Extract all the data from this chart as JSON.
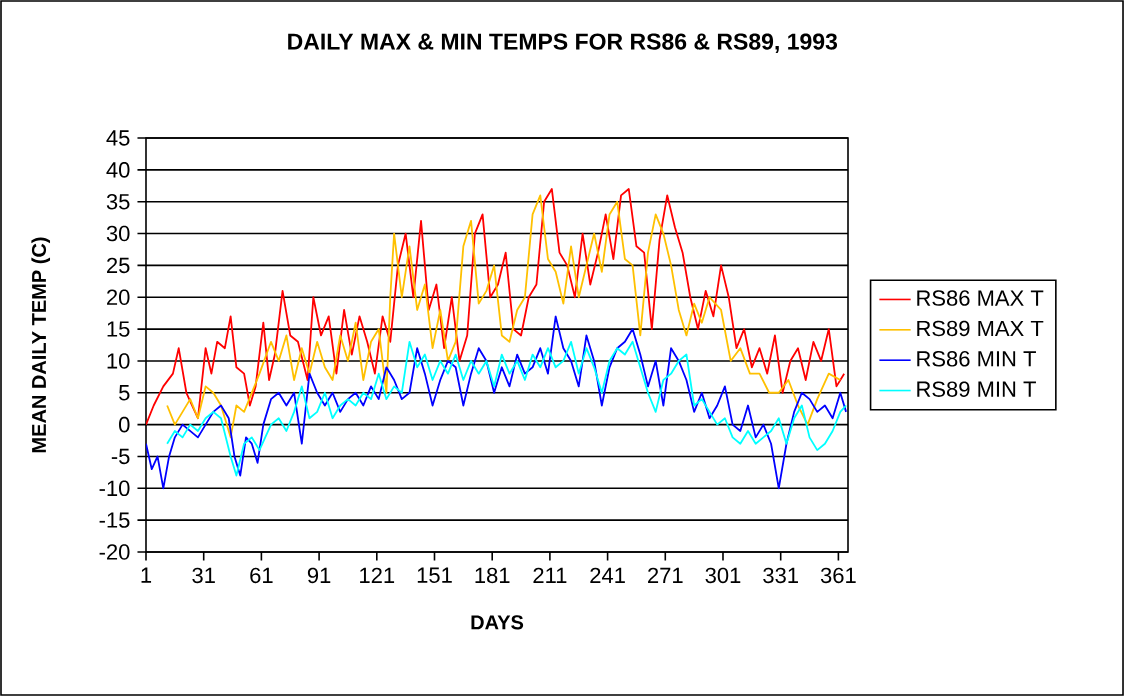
{
  "chart_data": {
    "type": "line",
    "title": "DAILY MAX & MIN TEMPS FOR RS86 & RS89, 1993",
    "xlabel": "DAYS",
    "ylabel": "MEAN DAILY TEMP (C)",
    "xlim": [
      1,
      366
    ],
    "xticks": [
      1,
      31,
      61,
      91,
      121,
      151,
      181,
      211,
      241,
      271,
      301,
      331,
      361
    ],
    "ylim": [
      -20,
      45
    ],
    "yticks": [
      -20,
      -15,
      -10,
      -5,
      0,
      5,
      10,
      15,
      20,
      25,
      30,
      35,
      40,
      45
    ],
    "grid": "y",
    "legend": "right",
    "series": [
      {
        "name": "RS86 MAX T",
        "color": "#ff0000",
        "x": [
          1,
          5,
          10,
          15,
          18,
          22,
          25,
          28,
          32,
          35,
          38,
          42,
          45,
          48,
          52,
          55,
          58,
          62,
          65,
          68,
          72,
          76,
          80,
          85,
          88,
          92,
          96,
          100,
          104,
          108,
          112,
          116,
          120,
          124,
          128,
          132,
          136,
          140,
          144,
          148,
          152,
          156,
          160,
          164,
          168,
          172,
          176,
          180,
          184,
          188,
          192,
          196,
          200,
          204,
          208,
          212,
          216,
          220,
          224,
          228,
          232,
          236,
          240,
          244,
          248,
          252,
          256,
          260,
          264,
          268,
          272,
          276,
          280,
          284,
          288,
          292,
          296,
          300,
          304,
          308,
          312,
          316,
          320,
          324,
          328,
          332,
          336,
          340,
          344,
          348,
          352,
          356,
          360,
          364
        ],
        "values": [
          0,
          3,
          6,
          8,
          12,
          5,
          3,
          1,
          12,
          8,
          13,
          12,
          17,
          9,
          8,
          3,
          6,
          16,
          7,
          11,
          21,
          14,
          13,
          7,
          20,
          14,
          17,
          8,
          18,
          11,
          17,
          13,
          8,
          17,
          13,
          25,
          30,
          20,
          32,
          18,
          22,
          12,
          20,
          10,
          14,
          30,
          33,
          20,
          22,
          27,
          15,
          14,
          20,
          22,
          35,
          37,
          27,
          25,
          20,
          30,
          22,
          27,
          33,
          26,
          36,
          37,
          28,
          27,
          15,
          29,
          36,
          31,
          27,
          20,
          15,
          21,
          17,
          25,
          20,
          12,
          15,
          9,
          12,
          8,
          14,
          5,
          10,
          12,
          7,
          13,
          10,
          15,
          6,
          8
        ]
      },
      {
        "name": "RS89 MAX T",
        "color": "#ffc000",
        "x": [
          12,
          16,
          20,
          24,
          28,
          32,
          36,
          40,
          45,
          48,
          52,
          56,
          60,
          66,
          70,
          74,
          78,
          82,
          86,
          90,
          94,
          98,
          102,
          106,
          110,
          114,
          118,
          122,
          126,
          128,
          130,
          134,
          138,
          142,
          146,
          150,
          154,
          158,
          162,
          166,
          170,
          174,
          178,
          182,
          186,
          190,
          194,
          198,
          202,
          206,
          210,
          214,
          218,
          222,
          226,
          230,
          234,
          238,
          242,
          246,
          250,
          254,
          258,
          262,
          266,
          270,
          274,
          278,
          282,
          286,
          290,
          294,
          300,
          305,
          310,
          315,
          320,
          325,
          330,
          335,
          340,
          345,
          350,
          356,
          362
        ],
        "values": [
          3,
          0,
          2,
          4,
          1,
          6,
          5,
          3,
          -2,
          3,
          2,
          5,
          8,
          13,
          10,
          14,
          7,
          12,
          8,
          13,
          9,
          7,
          14,
          10,
          16,
          7,
          13,
          15,
          5,
          20,
          30,
          20,
          28,
          18,
          22,
          12,
          18,
          10,
          13,
          28,
          32,
          19,
          21,
          25,
          14,
          13,
          18,
          20,
          33,
          36,
          26,
          24,
          19,
          28,
          20,
          25,
          30,
          24,
          33,
          35,
          26,
          25,
          14,
          27,
          33,
          30,
          25,
          18,
          14,
          19,
          16,
          20,
          18,
          10,
          12,
          8,
          8,
          5,
          5,
          7,
          3,
          0,
          4,
          8,
          7
        ]
      },
      {
        "name": "RS86 MIN T",
        "color": "#0000ff",
        "x": [
          1,
          4,
          7,
          10,
          13,
          16,
          20,
          24,
          28,
          32,
          36,
          40,
          44,
          47,
          50,
          53,
          56,
          59,
          62,
          66,
          70,
          74,
          78,
          82,
          86,
          90,
          94,
          98,
          102,
          106,
          110,
          114,
          118,
          122,
          126,
          130,
          134,
          138,
          142,
          146,
          150,
          154,
          158,
          162,
          166,
          170,
          174,
          178,
          182,
          186,
          190,
          194,
          198,
          202,
          206,
          210,
          214,
          218,
          222,
          226,
          230,
          234,
          238,
          242,
          246,
          250,
          254,
          258,
          262,
          266,
          270,
          274,
          278,
          282,
          286,
          290,
          294,
          298,
          302,
          306,
          310,
          314,
          318,
          322,
          326,
          330,
          334,
          338,
          342,
          346,
          350,
          354,
          358,
          362,
          365
        ],
        "values": [
          -3,
          -7,
          -5,
          -10,
          -5,
          -2,
          0,
          -1,
          -2,
          0,
          2,
          3,
          1,
          -5,
          -8,
          -2,
          -3,
          -6,
          0,
          4,
          5,
          3,
          5,
          -3,
          8,
          5,
          3,
          5,
          2,
          4,
          5,
          3,
          6,
          4,
          9,
          7,
          4,
          5,
          12,
          8,
          3,
          7,
          10,
          9,
          3,
          8,
          12,
          10,
          5,
          9,
          6,
          11,
          8,
          9,
          12,
          8,
          17,
          12,
          10,
          6,
          14,
          10,
          3,
          9,
          12,
          13,
          15,
          11,
          6,
          10,
          3,
          12,
          10,
          7,
          2,
          5,
          1,
          3,
          6,
          0,
          -1,
          3,
          -2,
          0,
          -3,
          -10,
          -3,
          2,
          5,
          4,
          2,
          3,
          1,
          5,
          2
        ]
      },
      {
        "name": "RS89 MIN T",
        "color": "#00ffff",
        "x": [
          12,
          16,
          20,
          24,
          28,
          32,
          36,
          40,
          45,
          48,
          52,
          56,
          60,
          66,
          70,
          74,
          78,
          82,
          86,
          90,
          94,
          98,
          102,
          106,
          110,
          114,
          118,
          122,
          126,
          130,
          134,
          138,
          142,
          146,
          150,
          154,
          158,
          162,
          166,
          170,
          174,
          178,
          182,
          186,
          190,
          194,
          198,
          202,
          206,
          210,
          214,
          218,
          222,
          226,
          230,
          234,
          238,
          242,
          246,
          250,
          254,
          258,
          262,
          266,
          270,
          274,
          278,
          282,
          286,
          290,
          294,
          298,
          302,
          306,
          310,
          314,
          318,
          322,
          326,
          330,
          334,
          338,
          342,
          346,
          350,
          354,
          358,
          362,
          365
        ],
        "values": [
          -3,
          -1,
          -2,
          0,
          -1,
          1,
          2,
          1,
          -5,
          -8,
          -3,
          -2,
          -4,
          0,
          1,
          -1,
          2,
          6,
          1,
          2,
          5,
          1,
          3,
          4,
          3,
          5,
          4,
          8,
          4,
          6,
          5,
          13,
          9,
          11,
          7,
          10,
          8,
          11,
          7,
          10,
          8,
          10,
          6,
          11,
          8,
          10,
          7,
          11,
          9,
          12,
          9,
          10,
          13,
          8,
          12,
          9,
          5,
          10,
          12,
          11,
          13,
          9,
          5,
          2,
          7,
          8,
          10,
          11,
          3,
          4,
          2,
          0,
          1,
          -2,
          -3,
          -1,
          -3,
          -2,
          -1,
          1,
          -3,
          1,
          3,
          -2,
          -4,
          -3,
          -1,
          2,
          3
        ]
      }
    ]
  }
}
